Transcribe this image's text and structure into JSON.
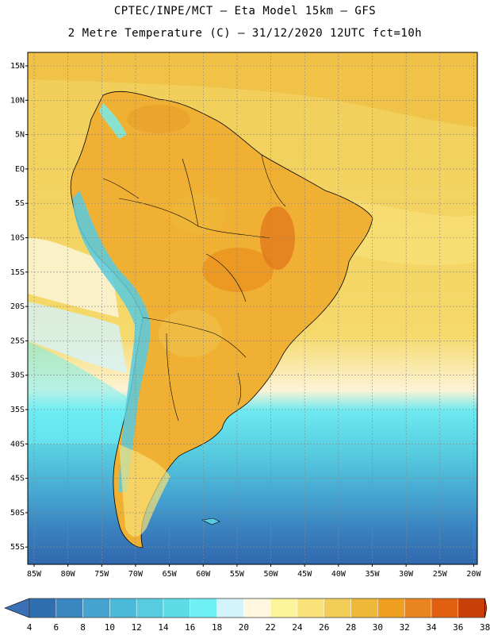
{
  "header": {
    "line1": "CPTEC/INPE/MCT –  Eta Model 15km – GFS",
    "line2": "2 Metre Temperature (C) – 31/12/2020 12UTC fct=10h"
  },
  "map": {
    "lat_labels": [
      "15N",
      "10N",
      "5N",
      "EQ",
      "5S",
      "10S",
      "15S",
      "20S",
      "25S",
      "30S",
      "35S",
      "40S",
      "45S",
      "50S",
      "55S"
    ],
    "lon_labels": [
      "85W",
      "80W",
      "75W",
      "70W",
      "65W",
      "60W",
      "55W",
      "50W",
      "45W",
      "40W",
      "35W",
      "30W",
      "25W",
      "20W"
    ],
    "region": "South America"
  },
  "colorbar": {
    "labels": [
      "4",
      "6",
      "8",
      "10",
      "12",
      "14",
      "16",
      "18",
      "20",
      "22",
      "24",
      "26",
      "28",
      "30",
      "32",
      "34",
      "36",
      "38"
    ],
    "colors": [
      "#2f6fb0",
      "#3a86c0",
      "#45a3cf",
      "#4bbad8",
      "#57cbe0",
      "#5fdbe8",
      "#6ef0f5",
      "#d4f4fb",
      "#fdf7e0",
      "#fdf39a",
      "#f8e178",
      "#f2cd58",
      "#eeb838",
      "#f0a020",
      "#ea8420",
      "#e06010",
      "#c84008",
      "#c85020"
    ],
    "edge_colors": {
      "low": "#3a70b5",
      "high": "#c85020"
    }
  }
}
